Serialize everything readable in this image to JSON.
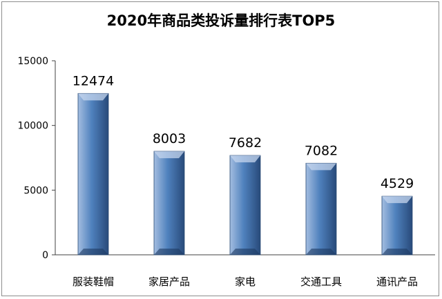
{
  "chart_data": {
    "type": "bar",
    "title": "2020年商品类投诉量排行表TOP5",
    "categories": [
      "服装鞋帽",
      "家居产品",
      "家电",
      "交通工具",
      "通讯产品"
    ],
    "series": [
      {
        "values": [
          12474,
          8003,
          7682,
          7082,
          4529
        ]
      }
    ],
    "data_labels": [
      "12474",
      "8003",
      "7682",
      "7082",
      "4529"
    ],
    "y_ticks": [
      "0",
      "5000",
      "10000",
      "15000"
    ],
    "ylim": [
      0,
      15000
    ],
    "grid": false,
    "legend": "none",
    "colors": {
      "bar_light": "#a3bde0",
      "bar_main": "#4f81bd",
      "bar_dark": "#284a7a",
      "axis": "#404040",
      "frame": "#8c8c8c"
    }
  }
}
